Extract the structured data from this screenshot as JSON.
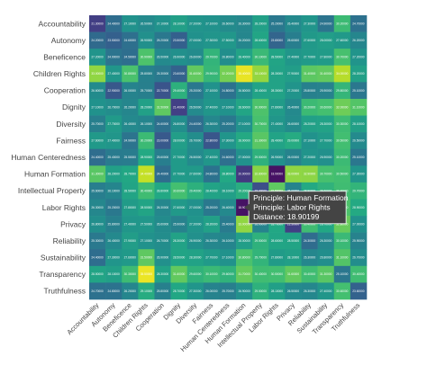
{
  "chart_data": {
    "type": "heatmap",
    "title": "",
    "xlabel": "",
    "ylabel": "",
    "categories": [
      "Accountability",
      "Autonomy",
      "Beneficence",
      "Children Rights",
      "Cooperation",
      "Dignity",
      "Diversity",
      "Fairness",
      "Human Centeredness",
      "Human Formation",
      "Intellectual Property",
      "Labor Rights",
      "Privacy",
      "Reliability",
      "Sustainability",
      "Transparency",
      "Truthfulness"
    ],
    "x": [
      "Accountability",
      "Autonomy",
      "Beneficence",
      "Children Rights",
      "Cooperation",
      "Dignity",
      "Diversity",
      "Fairness",
      "Human Centeredness",
      "Human Formation",
      "Intellectual Property",
      "Labor Rights",
      "Privacy",
      "Reliability",
      "Sustainability",
      "Transparency",
      "Truthfulness"
    ],
    "y": [
      "Accountability",
      "Autonomy",
      "Beneficence",
      "Children Rights",
      "Cooperation",
      "Dignity",
      "Diversity",
      "Fairness",
      "Human Centeredness",
      "Human Formation",
      "Intellectual Property",
      "Labor Rights",
      "Privacy",
      "Reliability",
      "Sustainability",
      "Transparency",
      "Truthfulness"
    ],
    "z": [
      [
        21.3,
        24.4,
        27.1,
        26.5,
        27.1,
        28.1,
        27.2,
        27.1,
        26.6,
        26.3,
        28.2,
        25.2,
        26.4,
        27.3,
        24.9,
        30.2,
        24.7
      ],
      [
        24.2,
        23.5,
        24.6,
        26.9,
        25.2,
        23.5,
        27.0,
        27.3,
        27.5,
        26.2,
        28.6,
        23.8,
        25.6,
        27.6,
        28.0,
        27.6,
        26.2
      ],
      [
        27.2,
        24.9,
        24.5,
        30.9,
        26.5,
        26.9,
        26.6,
        29.7,
        26.8,
        28.4,
        30.1,
        28.5,
        27.4,
        27.7,
        27.8,
        30.7,
        27.2
      ],
      [
        33.0,
        27.4,
        30.8,
        25.8,
        25.3,
        23.6,
        31.6,
        29.9,
        32.2,
        35.4,
        33.1,
        28.3,
        27.9,
        31.4,
        31.6,
        34.0,
        28.2
      ],
      [
        26.6,
        22.9,
        26.0,
        25.7,
        22.7,
        29.4,
        25.2,
        27.1,
        24.8,
        26.8,
        28.4,
        28.3,
        27.2,
        25.8,
        25.9,
        29.8,
        25.1
      ],
      [
        27.1,
        26.7,
        26.2,
        28.2,
        31.5,
        21.4,
        26.5,
        27.4,
        27.1,
        28.6,
        30.9,
        27.8,
        26.4,
        30.2,
        30.6,
        32.0,
        31.1
      ],
      [
        25.7,
        27.7,
        26.4,
        26.1,
        24.6,
        26.8,
        24.4,
        26.3,
        25.2,
        27.1,
        30.7,
        27.4,
        26.6,
        28.2,
        28.3,
        30.3,
        28.1
      ],
      [
        27.6,
        27.4,
        24.9,
        30.2,
        23.0,
        28.0,
        26.7,
        22.8,
        27.3,
        28.9,
        31.3,
        28.4,
        29.0,
        27.1,
        27.7,
        30.5,
        26.5
      ],
      [
        24.4,
        25.4,
        25.5,
        28.9,
        25.6,
        27.7,
        26.5,
        27.4,
        24.6,
        27.0,
        29.5,
        26.9,
        26.0,
        27.2,
        26.9,
        30.2,
        25.1
      ],
      [
        31.3,
        28.2,
        28.7,
        34.4,
        24.4,
        27.7,
        27.6,
        24.8,
        28.8,
        20.9,
        32.8,
        18.9,
        33.0,
        32.9,
        30.7,
        30.5,
        27.3
      ],
      [
        25.6,
        26.1,
        28.5,
        30.4,
        28.8,
        30.6,
        29.4,
        28.4,
        28.1,
        29.2,
        22.3,
        31.5,
        26.0,
        28.9,
        29.6,
        30.4,
        29.7
      ],
      [
        26.3,
        25.2,
        27.8,
        28.5,
        26.3,
        27.6,
        27.0,
        25.2,
        26.4,
        18.9,
        31.5,
        19.6,
        28.8,
        27.8,
        27.8,
        30.9,
        28.9
      ],
      [
        26.8,
        25.8,
        27.4,
        27.5,
        26.6,
        25.9,
        27.2,
        28.2,
        25.4,
        33.0,
        26.0,
        28.7,
        21.3,
        30.4,
        28.7,
        31.8,
        27.0
      ],
      [
        25.3,
        26.4,
        27.9,
        27.1,
        26.7,
        28.3,
        26.9,
        26.3,
        26.1,
        28.0,
        29.5,
        28.6,
        28.5,
        24.3,
        26.3,
        30.1,
        25.9
      ],
      [
        24.4,
        27.3,
        27.6,
        31.5,
        26.9,
        28.5,
        28.3,
        27.7,
        27.1,
        30.8,
        29.7,
        27.8,
        28.1,
        26.3,
        26.8,
        31.1,
        26.7
      ],
      [
        28.5,
        28.1,
        30.3,
        35.5,
        28.3,
        31.6,
        29.6,
        30.1,
        29.6,
        31.7,
        30.4,
        30.5,
        31.6,
        30.4,
        31.3,
        25.1,
        30.4
      ],
      [
        24.7,
        24.8,
        26.2,
        29.1,
        25.8,
        28.7,
        27.3,
        26.0,
        25.7,
        26.9,
        29.5,
        28.1,
        26.5,
        26.3,
        27.4,
        30.6,
        23.6
      ]
    ],
    "colorscale": "viridis",
    "zrange": [
      18,
      36
    ],
    "grid": false,
    "legend": "none",
    "hover": {
      "x": "Human Formation",
      "y": "Labor Rights",
      "x_line": "Principle: Human Formation",
      "y_line": "Principle: Labor Rights",
      "value_line": "Distance: 18.90199"
    }
  }
}
